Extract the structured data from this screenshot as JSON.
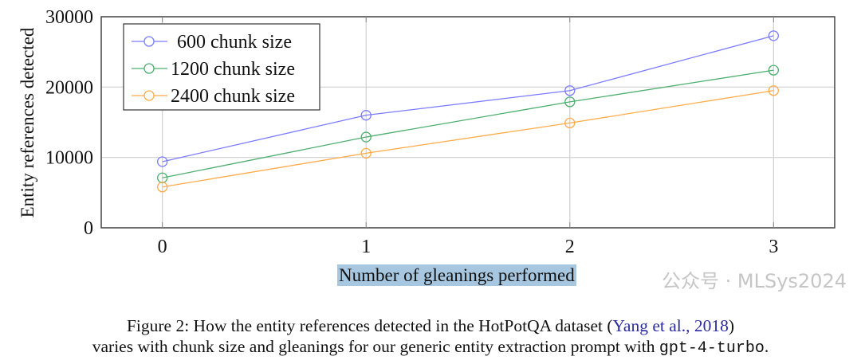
{
  "chart_data": {
    "type": "line",
    "title": "",
    "xlabel": "Number of gleanings performed",
    "ylabel": "Entity references detected",
    "x": [
      0,
      1,
      2,
      3
    ],
    "xticks": [
      "0",
      "1",
      "2",
      "3"
    ],
    "yticks": [
      "0",
      "10000",
      "20000",
      "30000"
    ],
    "ytick_values": [
      0,
      10000,
      20000,
      30000
    ],
    "xlim": [
      -0.3,
      3.3
    ],
    "ylim": [
      0,
      30000
    ],
    "grid": true,
    "legend_position": "top-left",
    "series": [
      {
        "name": "600 chunk size",
        "color": "#7b7bff",
        "values": [
          9400,
          16000,
          19500,
          27300
        ]
      },
      {
        "name": "1200 chunk size",
        "color": "#4caf6e",
        "values": [
          7100,
          12900,
          17900,
          22400
        ]
      },
      {
        "name": "2400 chunk size",
        "color": "#ffab4a",
        "values": [
          5800,
          10600,
          14900,
          19500
        ]
      }
    ]
  },
  "caption": {
    "line1_before": "Figure 2: How the entity references detected in the HotPotQA dataset (",
    "citation": "Yang et al., 2018",
    "line1_after": ")",
    "line2_before": "varies with chunk size and gleanings for our generic entity extraction prompt with ",
    "model": "gpt-4-turbo",
    "line2_after": "."
  },
  "watermark": "公众号 · MLSys2024"
}
